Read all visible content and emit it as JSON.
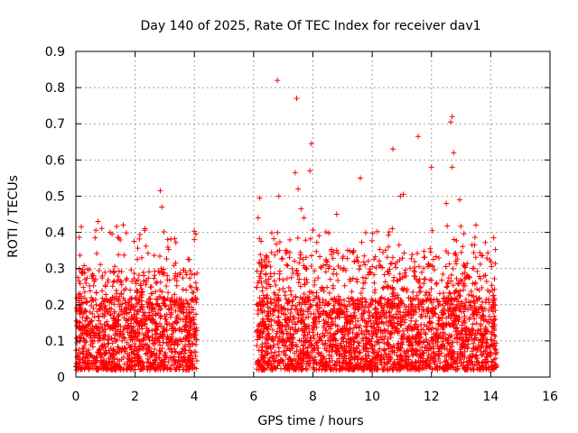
{
  "chart_data": {
    "type": "scatter",
    "title": "Day 140 of 2025, Rate Of TEC Index for receiver dav1",
    "xlabel": "GPS time / hours",
    "ylabel": "ROTI / TECUs",
    "xlim": [
      0,
      16
    ],
    "ylim": [
      0,
      0.9
    ],
    "xticks": [
      "0",
      "2",
      "4",
      "6",
      "8",
      "10",
      "12",
      "14",
      "16"
    ],
    "yticks": [
      "0",
      "0.1",
      "0.2",
      "0.3",
      "0.4",
      "0.5",
      "0.6",
      "0.7",
      "0.8",
      "0.9"
    ],
    "grid": true,
    "marker": "+",
    "color": "#ff0000",
    "series": [
      {
        "name": "ROTI",
        "note": "dense cloud of points in two time windows; representative points listed, the rendering script adds a deterministic fill for the dense region",
        "segments": [
          {
            "x_start": 0.0,
            "x_end": 4.1,
            "typical_max": 0.3
          },
          {
            "x_start": 6.1,
            "x_end": 14.2,
            "typical_max": 0.35
          }
        ],
        "points": [
          [
            6.8,
            0.82
          ],
          [
            7.45,
            0.77
          ],
          [
            7.95,
            0.645
          ],
          [
            12.7,
            0.72
          ],
          [
            12.65,
            0.705
          ],
          [
            11.55,
            0.665
          ],
          [
            10.7,
            0.63
          ],
          [
            12.75,
            0.62
          ],
          [
            12.7,
            0.58
          ],
          [
            12.0,
            0.58
          ],
          [
            7.4,
            0.565
          ],
          [
            7.9,
            0.57
          ],
          [
            9.6,
            0.55
          ],
          [
            2.85,
            0.515
          ],
          [
            2.9,
            0.47
          ],
          [
            11.05,
            0.505
          ],
          [
            10.95,
            0.5
          ],
          [
            6.2,
            0.495
          ],
          [
            6.85,
            0.5
          ],
          [
            7.5,
            0.52
          ],
          [
            12.5,
            0.48
          ],
          [
            12.95,
            0.49
          ],
          [
            7.6,
            0.465
          ],
          [
            0.75,
            0.43
          ],
          [
            1.6,
            0.42
          ],
          [
            6.15,
            0.44
          ],
          [
            7.7,
            0.44
          ],
          [
            8.8,
            0.45
          ],
          [
            13.5,
            0.42
          ],
          [
            4.05,
            0.395
          ],
          [
            4.0,
            0.38
          ],
          [
            3.1,
            0.38
          ],
          [
            14.1,
            0.385
          ],
          [
            1.15,
            0.4
          ],
          [
            0.65,
            0.385
          ]
        ]
      }
    ]
  }
}
